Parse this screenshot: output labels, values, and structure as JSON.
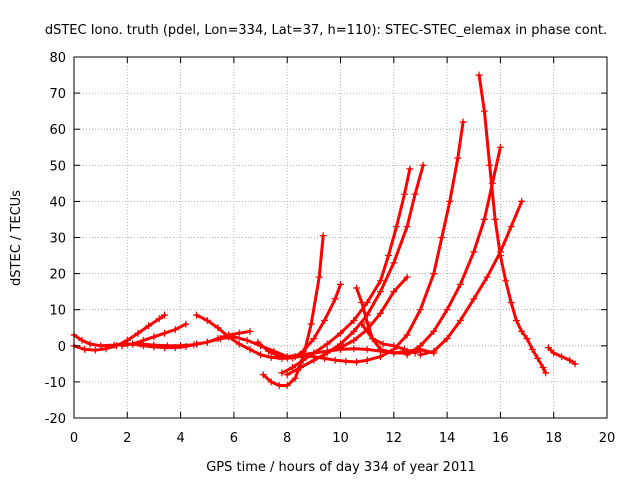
{
  "chart_data": {
    "type": "scatter",
    "title": "dSTEC Iono. truth (pdel, Lon=334, Lat=37, h=110): STEC-STEC_elemax in phase cont.",
    "xlabel": "GPS time / hours of day 334 of year 2011",
    "ylabel": "dSTEC  / TECUs",
    "xlim": [
      0,
      20
    ],
    "ylim": [
      -20,
      80
    ],
    "xticks": [
      0,
      2,
      4,
      6,
      8,
      10,
      12,
      14,
      16,
      18,
      20
    ],
    "yticks": [
      -20,
      -10,
      0,
      10,
      20,
      30,
      40,
      50,
      60,
      70,
      80
    ],
    "grid": true,
    "legend": "none",
    "color": "#ff0000",
    "marker": "plus",
    "series": [
      {
        "x": [
          0.0,
          0.3,
          0.6,
          1.0,
          1.5,
          2.0,
          2.5,
          3.0,
          3.5,
          4.0,
          4.5,
          5.0,
          5.5,
          6.0,
          6.5,
          7.0,
          7.5,
          8.0,
          8.5,
          9.0,
          9.5,
          10.0,
          10.5,
          11.0,
          11.5,
          12.0,
          12.5,
          13.0
        ],
        "y": [
          3.0,
          1.5,
          0.5,
          0.0,
          0.2,
          0.5,
          0.5,
          0.2,
          0.0,
          0.0,
          0.3,
          1.0,
          2.0,
          2.5,
          1.5,
          0.0,
          -1.5,
          -3.0,
          -2.5,
          -2.0,
          -1.5,
          -1.0,
          -0.8,
          -1.0,
          -1.5,
          -2.0,
          -2.0,
          -1.5
        ]
      },
      {
        "x": [
          0.0,
          0.4,
          0.8,
          1.2,
          1.6,
          2.0,
          2.4,
          2.8,
          3.2,
          3.4
        ],
        "y": [
          0.0,
          -1.0,
          -1.2,
          -0.8,
          0.0,
          1.5,
          3.5,
          5.5,
          7.5,
          8.5
        ]
      },
      {
        "x": [
          1.8,
          2.2,
          2.6,
          3.0,
          3.4,
          3.8,
          4.2
        ],
        "y": [
          0.0,
          0.5,
          1.5,
          2.5,
          3.5,
          4.5,
          6.0
        ]
      },
      {
        "x": [
          2.2,
          2.6,
          3.0,
          3.4,
          3.8,
          4.2,
          4.6,
          5.0,
          5.4,
          5.8,
          6.2,
          6.6
        ],
        "y": [
          0.5,
          0.0,
          -0.3,
          -0.5,
          -0.5,
          -0.2,
          0.5,
          1.0,
          2.0,
          3.0,
          3.5,
          4.0
        ]
      },
      {
        "x": [
          4.6,
          5.0,
          5.4,
          5.8,
          6.2,
          6.6,
          7.0,
          7.4,
          7.8,
          8.2,
          8.6,
          9.0,
          9.4,
          9.8,
          10.2,
          10.6,
          11.0
        ],
        "y": [
          8.5,
          7.0,
          5.0,
          2.5,
          0.5,
          -1.0,
          -2.5,
          -3.2,
          -3.5,
          -3.3,
          -2.8,
          -3.0,
          -3.5,
          -4.0,
          -4.3,
          -4.5,
          -4.0
        ]
      },
      {
        "x": [
          7.1,
          7.4,
          7.7,
          8.0,
          8.3,
          8.6,
          8.9,
          9.2,
          9.35
        ],
        "y": [
          -8.0,
          -10.0,
          -11.0,
          -11.0,
          -9.0,
          -3.0,
          6.0,
          19.0,
          30.5
        ]
      },
      {
        "x": [
          6.9,
          7.3,
          7.7,
          8.0,
          8.3,
          8.6,
          9.0,
          9.4,
          9.8,
          10.0
        ],
        "y": [
          1.0,
          -1.5,
          -3.0,
          -3.5,
          -3.0,
          -1.5,
          2.0,
          7.0,
          13.0,
          17.0
        ]
      },
      {
        "x": [
          7.8,
          8.2,
          8.6,
          9.0,
          9.5,
          10.0,
          10.5,
          11.0,
          11.5,
          11.8,
          12.1,
          12.4,
          12.6
        ],
        "y": [
          -7.5,
          -6.0,
          -4.0,
          -2.0,
          0.5,
          3.5,
          7.0,
          12.0,
          18.0,
          25.0,
          33.0,
          42.0,
          49.0
        ]
      },
      {
        "x": [
          8.0,
          8.5,
          9.0,
          9.5,
          10.0,
          10.5,
          11.0,
          11.5,
          12.0,
          12.5,
          12.8,
          13.1
        ],
        "y": [
          -8.0,
          -6.0,
          -4.0,
          -2.0,
          0.5,
          4.0,
          8.5,
          15.0,
          23.0,
          33.0,
          42.0,
          50.0
        ]
      },
      {
        "x": [
          9.5,
          10.0,
          10.5,
          11.0,
          11.5,
          12.0,
          12.5
        ],
        "y": [
          -1.5,
          -0.5,
          1.5,
          4.5,
          9.0,
          15.0,
          19.0
        ]
      },
      {
        "x": [
          10.6,
          10.8,
          11.0,
          11.2,
          11.5,
          12.0,
          12.5,
          13.0,
          13.5
        ],
        "y": [
          16.0,
          12.0,
          6.5,
          2.0,
          -1.0,
          -2.0,
          -1.5,
          -1.0,
          -2.0
        ]
      },
      {
        "x": [
          10.8,
          11.2,
          11.6,
          12.0,
          12.4,
          12.8
        ],
        "y": [
          6.0,
          2.0,
          0.5,
          0.0,
          -1.0,
          -2.0
        ]
      },
      {
        "x": [
          11.0,
          11.5,
          12.0,
          12.5,
          13.0,
          13.5,
          13.8,
          14.1,
          14.4,
          14.6
        ],
        "y": [
          -4.0,
          -3.0,
          -1.0,
          3.0,
          10.0,
          20.0,
          30.0,
          40.0,
          52.0,
          62.0
        ]
      },
      {
        "x": [
          12.5,
          13.0,
          13.5,
          14.0,
          14.5,
          15.0,
          15.4,
          15.7,
          16.0
        ],
        "y": [
          -2.5,
          0.0,
          4.0,
          10.0,
          17.0,
          26.0,
          35.0,
          45.0,
          55.0
        ]
      },
      {
        "x": [
          13.0,
          13.5,
          14.0,
          14.5,
          15.0,
          15.5,
          16.0,
          16.4,
          16.8
        ],
        "y": [
          -2.5,
          -1.5,
          2.0,
          7.0,
          13.0,
          19.0,
          26.0,
          33.0,
          40.0
        ]
      },
      {
        "x": [
          15.2,
          15.4,
          15.6,
          15.8,
          16.0,
          16.2,
          16.4,
          16.6,
          16.8,
          17.0,
          17.2,
          17.4,
          17.6,
          17.7
        ],
        "y": [
          75.0,
          65.0,
          50.0,
          35.0,
          25.0,
          18.0,
          12.0,
          7.0,
          4.0,
          2.0,
          -1.0,
          -3.5,
          -6.0,
          -7.5
        ]
      },
      {
        "x": [
          17.8,
          18.0,
          18.3,
          18.6,
          18.8
        ],
        "y": [
          -0.5,
          -2.0,
          -3.0,
          -4.0,
          -5.0
        ]
      }
    ]
  }
}
